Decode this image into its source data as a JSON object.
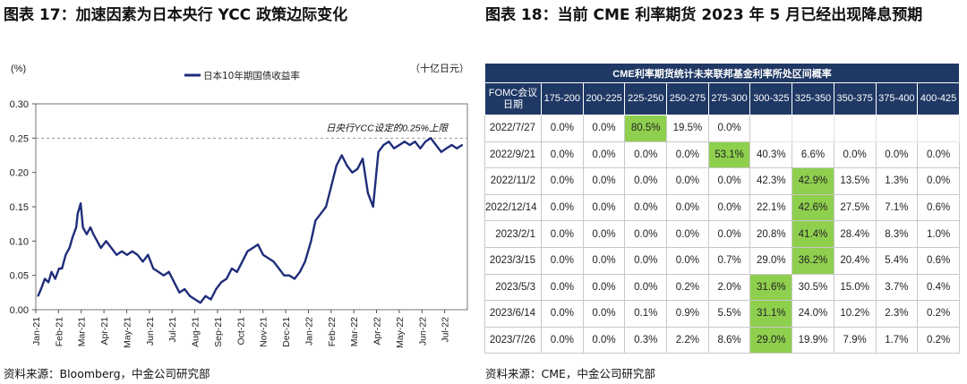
{
  "left_panel": {
    "title": "图表 17：加速因素为日本央行 YCC 政策边际变化",
    "source": "资料来源：Bloomberg，中金公司研究部"
  },
  "right_panel": {
    "title": "图表 18：当前 CME 利率期货 2023 年 5 月已经出现降息预期",
    "source": "资料来源：CME，中金公司研究部"
  },
  "colors": {
    "line": "#1f2d7a",
    "table_header": "#1f3864",
    "highlight": "#8fcf4e"
  },
  "chart_data": {
    "type": "line",
    "title": "",
    "left_unit": "(%)",
    "right_unit": "（十亿日元）",
    "legend": "日本10年期国债收益率",
    "legend_position": "top-center",
    "annotation": "日央行YCC设定的0.25%上限",
    "reference_line": 0.25,
    "ylim": [
      0,
      0.3
    ],
    "yticks": [
      "0.00",
      "0.05",
      "0.10",
      "0.15",
      "0.20",
      "0.25",
      "0.30"
    ],
    "xticks": [
      "Jan-21",
      "Feb-21",
      "Mar-21",
      "Apr-21",
      "May-21",
      "Jun-21",
      "Jul-21",
      "Aug-21",
      "Sep-21",
      "Oct-21",
      "Nov-21",
      "Dec-21",
      "Jan-22",
      "Feb-22",
      "Mar-22",
      "Apr-22",
      "May-22",
      "Jun-22",
      "Jul-22"
    ],
    "series": [
      {
        "name": "日本10年期国债收益率",
        "x": [
          "2021-01-04",
          "2021-01-08",
          "2021-01-13",
          "2021-01-18",
          "2021-01-22",
          "2021-01-27",
          "2021-02-01",
          "2021-02-05",
          "2021-02-10",
          "2021-02-15",
          "2021-02-19",
          "2021-02-24",
          "2021-02-26",
          "2021-03-02",
          "2021-03-05",
          "2021-03-10",
          "2021-03-15",
          "2021-03-19",
          "2021-03-24",
          "2021-03-29",
          "2021-04-05",
          "2021-04-12",
          "2021-04-19",
          "2021-04-26",
          "2021-05-03",
          "2021-05-10",
          "2021-05-17",
          "2021-05-24",
          "2021-05-31",
          "2021-06-07",
          "2021-06-14",
          "2021-06-21",
          "2021-06-28",
          "2021-07-05",
          "2021-07-12",
          "2021-07-19",
          "2021-07-26",
          "2021-08-02",
          "2021-08-09",
          "2021-08-16",
          "2021-08-23",
          "2021-08-30",
          "2021-09-06",
          "2021-09-13",
          "2021-09-20",
          "2021-09-27",
          "2021-10-04",
          "2021-10-11",
          "2021-10-18",
          "2021-10-25",
          "2021-11-01",
          "2021-11-08",
          "2021-11-15",
          "2021-11-22",
          "2021-11-29",
          "2021-12-06",
          "2021-12-13",
          "2021-12-20",
          "2021-12-27",
          "2022-01-04",
          "2022-01-10",
          "2022-01-17",
          "2022-01-24",
          "2022-01-31",
          "2022-02-07",
          "2022-02-14",
          "2022-02-21",
          "2022-02-28",
          "2022-03-07",
          "2022-03-14",
          "2022-03-21",
          "2022-03-28",
          "2022-04-04",
          "2022-04-11",
          "2022-04-18",
          "2022-04-25",
          "2022-05-02",
          "2022-05-09",
          "2022-05-16",
          "2022-05-23",
          "2022-05-30",
          "2022-06-06",
          "2022-06-13",
          "2022-06-20",
          "2022-06-27",
          "2022-07-04",
          "2022-07-11",
          "2022-07-18",
          "2022-07-25"
        ],
        "values": [
          0.02,
          0.03,
          0.045,
          0.04,
          0.055,
          0.045,
          0.06,
          0.06,
          0.08,
          0.09,
          0.105,
          0.12,
          0.14,
          0.155,
          0.12,
          0.11,
          0.12,
          0.11,
          0.1,
          0.09,
          0.1,
          0.09,
          0.08,
          0.085,
          0.08,
          0.085,
          0.08,
          0.07,
          0.08,
          0.06,
          0.055,
          0.05,
          0.055,
          0.04,
          0.025,
          0.03,
          0.02,
          0.015,
          0.01,
          0.02,
          0.015,
          0.03,
          0.04,
          0.045,
          0.06,
          0.055,
          0.07,
          0.085,
          0.09,
          0.095,
          0.08,
          0.075,
          0.07,
          0.06,
          0.05,
          0.05,
          0.045,
          0.055,
          0.07,
          0.1,
          0.13,
          0.14,
          0.15,
          0.18,
          0.21,
          0.225,
          0.21,
          0.2,
          0.205,
          0.22,
          0.17,
          0.15,
          0.23,
          0.24,
          0.245,
          0.235,
          0.24,
          0.245,
          0.24,
          0.245,
          0.235,
          0.245,
          0.25,
          0.24,
          0.23,
          0.235,
          0.24,
          0.235,
          0.24
        ]
      }
    ]
  },
  "table": {
    "caption": "CME利率期货统计未来联邦基金利率所处区间概率",
    "headers": [
      "FOMC会议日期",
      "175-200",
      "200-225",
      "225-250",
      "250-275",
      "275-300",
      "300-325",
      "325-350",
      "350-375",
      "375-400",
      "400-425"
    ],
    "rows": [
      {
        "date": "2022/7/27",
        "cells": [
          "0.0%",
          "0.0%",
          "80.5%",
          "19.5%",
          "0.0%",
          "",
          "",
          "",
          "",
          ""
        ],
        "hl": 2
      },
      {
        "date": "2022/9/21",
        "cells": [
          "0.0%",
          "0.0%",
          "0.0%",
          "0.0%",
          "53.1%",
          "40.3%",
          "6.6%",
          "0.0%",
          "0.0%",
          "0.0%"
        ],
        "hl": 4
      },
      {
        "date": "2022/11/2",
        "cells": [
          "0.0%",
          "0.0%",
          "0.0%",
          "0.0%",
          "0.0%",
          "42.3%",
          "42.9%",
          "13.5%",
          "1.3%",
          "0.0%"
        ],
        "hl": 6
      },
      {
        "date": "2022/12/14",
        "cells": [
          "0.0%",
          "0.0%",
          "0.0%",
          "0.0%",
          "0.0%",
          "22.1%",
          "42.6%",
          "27.5%",
          "7.1%",
          "0.6%"
        ],
        "hl": 6
      },
      {
        "date": "2023/2/1",
        "cells": [
          "0.0%",
          "0.0%",
          "0.0%",
          "0.0%",
          "0.0%",
          "20.8%",
          "41.4%",
          "28.4%",
          "8.3%",
          "1.0%"
        ],
        "hl": 6
      },
      {
        "date": "2023/3/15",
        "cells": [
          "0.0%",
          "0.0%",
          "0.0%",
          "0.0%",
          "0.7%",
          "29.0%",
          "36.2%",
          "20.4%",
          "5.4%",
          "0.6%"
        ],
        "hl": 6
      },
      {
        "date": "2023/5/3",
        "cells": [
          "0.0%",
          "0.0%",
          "0.0%",
          "0.2%",
          "2.0%",
          "31.6%",
          "30.5%",
          "15.0%",
          "3.7%",
          "0.4%"
        ],
        "hl": 5
      },
      {
        "date": "2023/6/14",
        "cells": [
          "0.0%",
          "0.0%",
          "0.1%",
          "0.9%",
          "5.5%",
          "31.1%",
          "24.0%",
          "10.2%",
          "2.3%",
          "0.2%"
        ],
        "hl": 5
      },
      {
        "date": "2023/7/26",
        "cells": [
          "0.0%",
          "0.0%",
          "0.3%",
          "2.2%",
          "8.6%",
          "29.0%",
          "19.9%",
          "7.9%",
          "1.7%",
          "0.2%"
        ],
        "hl": 5
      }
    ]
  }
}
